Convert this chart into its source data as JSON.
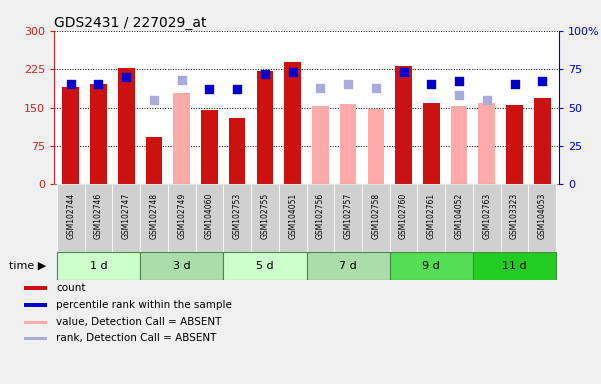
{
  "title": "GDS2431 / 227029_at",
  "samples": [
    "GSM102744",
    "GSM102746",
    "GSM102747",
    "GSM102748",
    "GSM102749",
    "GSM104060",
    "GSM102753",
    "GSM102755",
    "GSM104051",
    "GSM102756",
    "GSM102757",
    "GSM102758",
    "GSM102760",
    "GSM102761",
    "GSM104052",
    "GSM102763",
    "GSM103323",
    "GSM104053"
  ],
  "time_groups": [
    {
      "label": "1 d",
      "start": 0,
      "end": 3
    },
    {
      "label": "3 d",
      "start": 3,
      "end": 6
    },
    {
      "label": "5 d",
      "start": 6,
      "end": 9
    },
    {
      "label": "7 d",
      "start": 9,
      "end": 12
    },
    {
      "label": "9 d",
      "start": 12,
      "end": 15
    },
    {
      "label": "11 d",
      "start": 15,
      "end": 18
    }
  ],
  "time_group_colors": [
    "#ccffcc",
    "#aaddaa",
    "#ccffcc",
    "#aaddaa",
    "#55dd55",
    "#22cc22"
  ],
  "count_values": [
    190,
    195,
    228,
    92,
    null,
    145,
    130,
    222,
    238,
    null,
    null,
    null,
    232,
    158,
    null,
    null,
    155,
    168
  ],
  "count_absent_values": [
    null,
    null,
    null,
    null,
    178,
    null,
    null,
    null,
    null,
    152,
    157,
    148,
    null,
    null,
    152,
    158,
    null,
    null
  ],
  "percentile_values": [
    65,
    65,
    70,
    null,
    null,
    62,
    62,
    72,
    73,
    null,
    null,
    null,
    73,
    65,
    67,
    null,
    65,
    67
  ],
  "percentile_absent_values": [
    null,
    null,
    null,
    55,
    68,
    null,
    null,
    null,
    null,
    63,
    65,
    63,
    null,
    null,
    58,
    55,
    null,
    null
  ],
  "left_ylim": [
    0,
    300
  ],
  "right_ylim": [
    0,
    100
  ],
  "left_yticks": [
    0,
    75,
    150,
    225,
    300
  ],
  "right_yticks": [
    0,
    25,
    50,
    75,
    100
  ],
  "right_yticklabels": [
    "0",
    "25",
    "50",
    "75",
    "100%"
  ],
  "colors": {
    "count_bar": "#cc1111",
    "count_absent_bar": "#ffaaaa",
    "percentile_dot": "#0000cc",
    "percentile_absent_dot": "#aaaadd",
    "left_axis": "#cc2222",
    "right_axis": "#0000cc"
  },
  "bar_width": 0.6,
  "dot_size": 40
}
